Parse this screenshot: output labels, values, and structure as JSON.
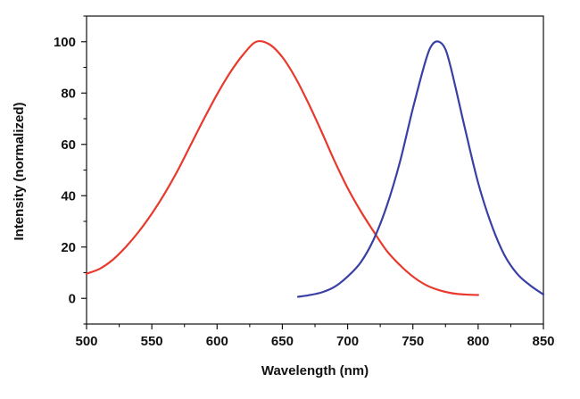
{
  "chart_data": {
    "type": "line",
    "title": "",
    "xlabel": "Wavelength (nm)",
    "ylabel": "Intensity (normalized)",
    "xlim": [
      500,
      850
    ],
    "ylim": [
      -10,
      110
    ],
    "xticks": [
      500,
      550,
      600,
      650,
      700,
      750,
      800,
      850
    ],
    "yticks": [
      0,
      20,
      40,
      60,
      80,
      100
    ],
    "grid": false,
    "series": [
      {
        "color": "#e8392c",
        "x": [
          500,
          510,
          520,
          530,
          540,
          550,
          560,
          570,
          580,
          590,
          600,
          610,
          620,
          630,
          640,
          650,
          660,
          670,
          680,
          690,
          700,
          710,
          720,
          730,
          740,
          750,
          760,
          770,
          780,
          790,
          800
        ],
        "y": [
          9.6,
          11.5,
          15,
          20,
          26,
          33,
          41,
          50,
          60,
          70,
          79.5,
          88,
          95,
          100,
          99,
          94,
          86,
          76,
          65,
          53.5,
          43,
          34,
          26,
          18.5,
          13,
          8.5,
          5.2,
          3.2,
          2,
          1.5,
          1.3
        ]
      },
      {
        "color": "#3a3fa3",
        "x": [
          662,
          670,
          680,
          690,
          700,
          710,
          720,
          730,
          740,
          750,
          760,
          765,
          770,
          775,
          780,
          790,
          800,
          810,
          820,
          830,
          840,
          850
        ],
        "y": [
          0.6,
          1.2,
          2.3,
          4.5,
          8.5,
          14,
          23,
          36,
          53,
          74,
          93,
          99,
          100,
          97,
          88,
          66,
          45,
          29,
          17,
          9.5,
          5,
          1.5
        ]
      }
    ]
  }
}
